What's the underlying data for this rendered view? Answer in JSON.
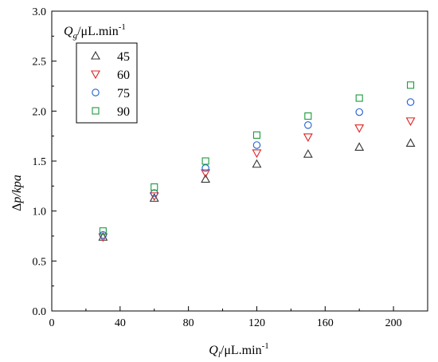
{
  "chart_data": {
    "type": "scatter",
    "xlabel": {
      "main": "Q",
      "sub": "l",
      "rest": "/μL.min",
      "sup": "-1"
    },
    "ylabel": {
      "delta": "Δ",
      "rest": "p/kpa"
    },
    "xlim": [
      0,
      220
    ],
    "ylim": [
      0,
      3.0
    ],
    "xticks": [
      "0",
      "40",
      "80",
      "120",
      "160",
      "200"
    ],
    "yticks": [
      "0.0",
      "0.5",
      "1.0",
      "1.5",
      "2.0",
      "2.5",
      "3.0"
    ],
    "legend_title": {
      "main": "Q",
      "sub": "g",
      "rest": "/μL.min",
      "sup": "-1"
    },
    "legend_position": "top-left",
    "x": [
      30,
      60,
      90,
      120,
      150,
      180,
      210
    ],
    "series": [
      {
        "name": "45",
        "marker": "triangle-up",
        "color": "#333333",
        "values": [
          0.74,
          1.13,
          1.32,
          1.47,
          1.57,
          1.64,
          1.68
        ]
      },
      {
        "name": "60",
        "marker": "triangle-down",
        "color": "#e02020",
        "values": [
          0.74,
          1.15,
          1.38,
          1.58,
          1.74,
          1.83,
          1.9
        ]
      },
      {
        "name": "75",
        "marker": "circle",
        "color": "#1f5fd0",
        "values": [
          0.76,
          1.18,
          1.43,
          1.66,
          1.86,
          1.99,
          2.09
        ]
      },
      {
        "name": "90",
        "marker": "square",
        "color": "#1a9a3a",
        "values": [
          0.8,
          1.24,
          1.5,
          1.76,
          1.95,
          2.13,
          2.26
        ]
      }
    ]
  }
}
